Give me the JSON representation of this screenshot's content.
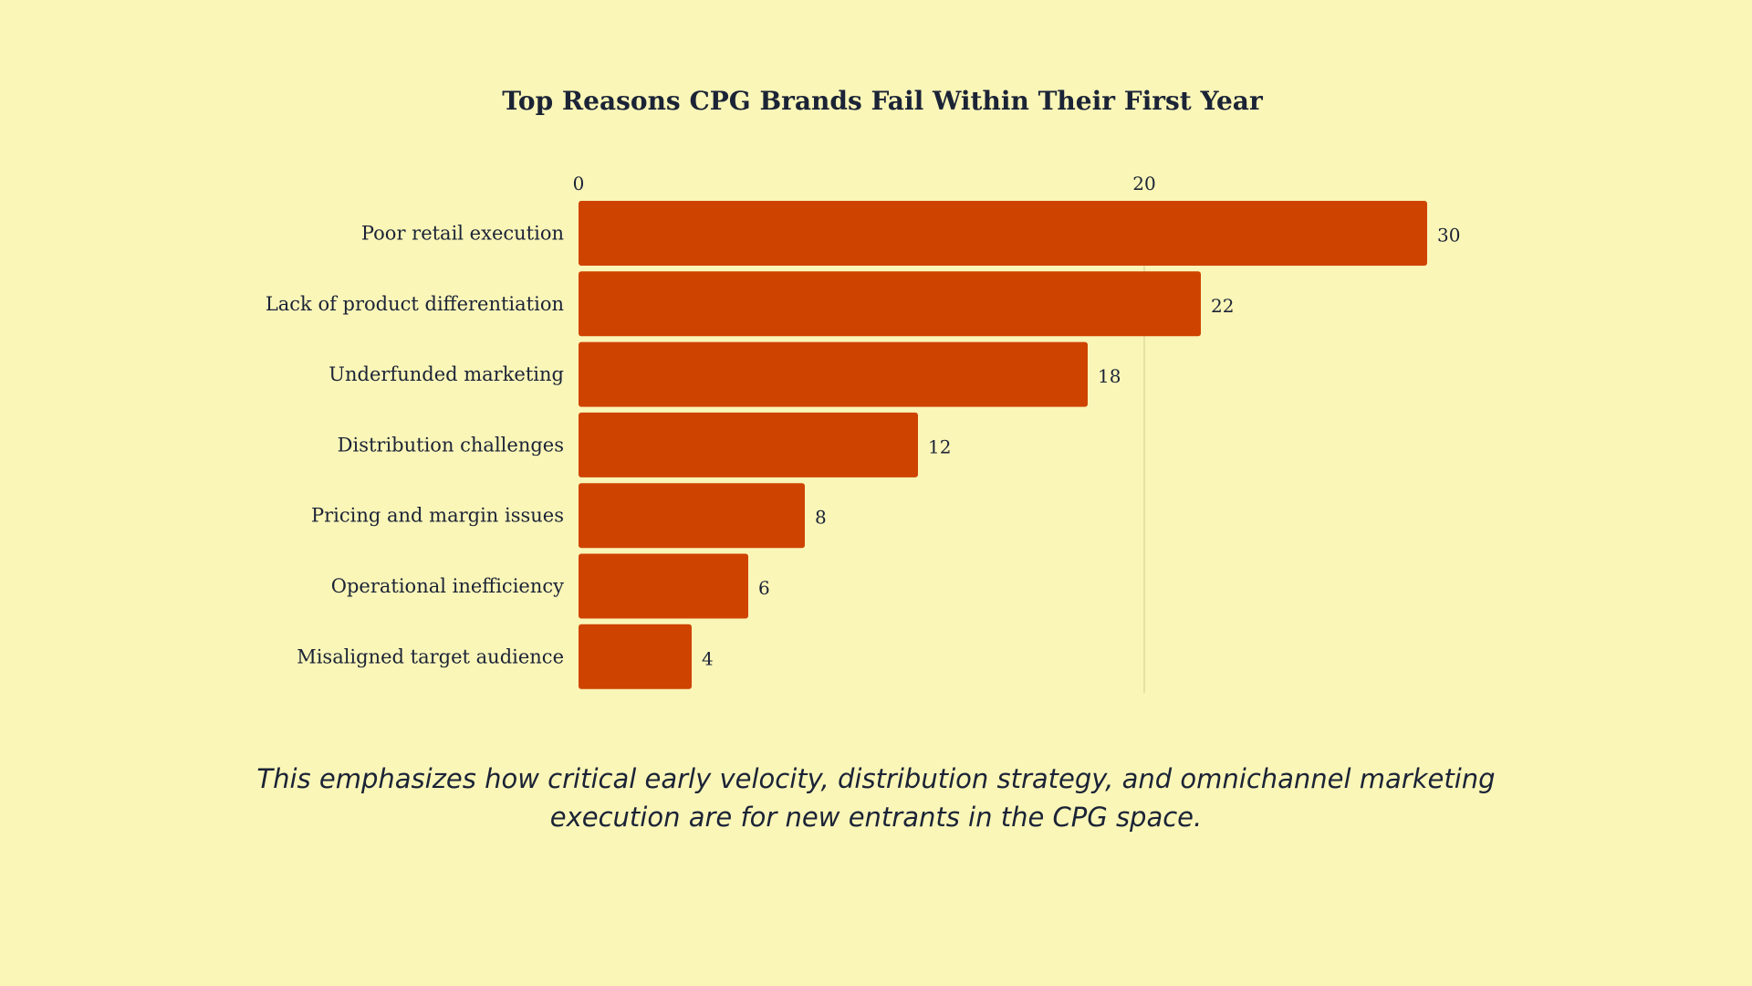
{
  "chart_data": {
    "type": "bar",
    "orientation": "horizontal",
    "title": "Top Reasons CPG Brands Fail Within Their First Year",
    "categories": [
      "Poor retail execution",
      "Lack of product differentiation",
      "Underfunded marketing",
      "Distribution challenges",
      "Pricing and margin issues",
      "Operational inefficiency",
      "Misaligned target audience"
    ],
    "values": [
      30,
      22,
      18,
      12,
      8,
      6,
      4
    ],
    "x_ticks": [
      0,
      20
    ],
    "xlim": [
      0,
      30
    ],
    "xaxis_position": "top",
    "grid": true,
    "colors": {
      "bar": "#cf4300",
      "background": "#faf6b8",
      "text": "#1b2336"
    }
  },
  "caption": "This emphasizes how critical early velocity, distribution strategy, and omnichannel marketing execution are for new entrants in the CPG space."
}
